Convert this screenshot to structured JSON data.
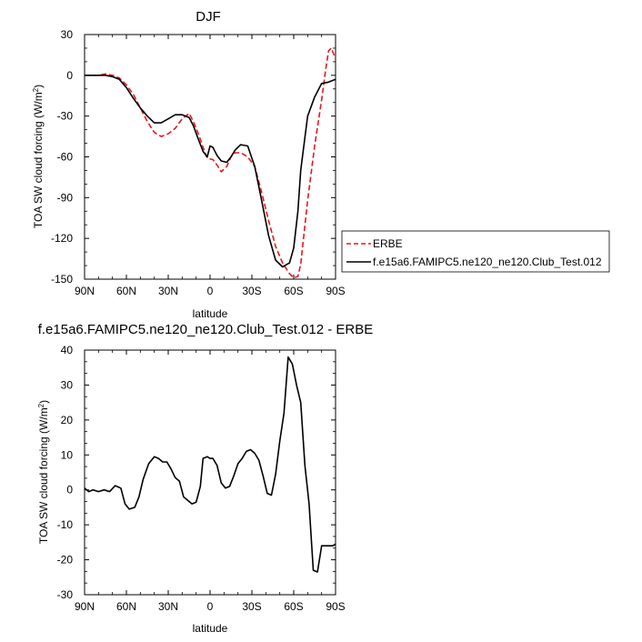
{
  "chart_data": [
    {
      "type": "line",
      "title": "DJF",
      "xlabel": "latitude",
      "ylabel_main": "TOA SW cloud forcing (W/m",
      "ylabel_sup": "2",
      "ylabel_tail": ")",
      "xlim": [
        90,
        -90
      ],
      "ylim": [
        -150,
        30
      ],
      "xticks": [
        90,
        60,
        30,
        0,
        -30,
        -60,
        -90
      ],
      "xtick_labels": [
        "90N",
        "60N",
        "30N",
        "0",
        "30S",
        "60S",
        "90S"
      ],
      "yticks": [
        30,
        0,
        -30,
        -60,
        -90,
        -120,
        -150
      ],
      "ytick_labels": [
        "30",
        "0",
        "-30",
        "-60",
        "-90",
        "-120",
        "-150"
      ],
      "legend_position": "right",
      "series": [
        {
          "name": "ERBE",
          "color": "#e31a1c",
          "dash": true,
          "x": [
            90,
            85,
            80,
            75,
            70,
            65,
            60,
            55,
            50,
            45,
            40,
            35,
            30,
            25,
            20,
            15,
            12,
            8,
            5,
            2,
            -2,
            -5,
            -8,
            -12,
            -15,
            -18,
            -22,
            -27,
            -32,
            -37,
            -42,
            -47,
            -52,
            -57,
            -60,
            -63,
            -65,
            -70,
            -75,
            -80,
            -83,
            -85,
            -87,
            -90
          ],
          "y": [
            0,
            0,
            0,
            1,
            0,
            -2,
            -7,
            -14,
            -24,
            -34,
            -42,
            -45,
            -43,
            -39,
            -32,
            -28,
            -34,
            -44,
            -53,
            -61,
            -62,
            -66,
            -71,
            -67,
            -60,
            -57,
            -57,
            -60,
            -67,
            -86,
            -107,
            -126,
            -138,
            -146,
            -149,
            -148,
            -139,
            -92,
            -52,
            -18,
            5,
            18,
            20,
            12
          ]
        },
        {
          "name": "f.e15a6.FAMIPC5.ne120_ne120.Club_Test.012",
          "color": "#000000",
          "dash": false,
          "x": [
            90,
            85,
            80,
            75,
            70,
            65,
            60,
            55,
            50,
            45,
            40,
            35,
            30,
            25,
            20,
            15,
            12,
            8,
            5,
            2,
            0,
            -2,
            -5,
            -8,
            -12,
            -15,
            -18,
            -22,
            -27,
            -32,
            -37,
            -42,
            -47,
            -52,
            -57,
            -60,
            -63,
            -65,
            -70,
            -75,
            -80,
            -85,
            -90
          ],
          "y": [
            0,
            0,
            0,
            0,
            -1,
            -3,
            -9,
            -17,
            -24,
            -30,
            -35,
            -35,
            -32,
            -29,
            -29,
            -31,
            -37,
            -48,
            -56,
            -60,
            -52,
            -53,
            -59,
            -63,
            -64,
            -60,
            -55,
            -51,
            -52,
            -67,
            -92,
            -118,
            -136,
            -141,
            -138,
            -127,
            -100,
            -70,
            -30,
            -16,
            -6,
            -5,
            -3
          ]
        }
      ]
    },
    {
      "type": "line",
      "title": "f.e15a6.FAMIPC5.ne120_ne120.Club_Test.012 - ERBE",
      "xlabel": "latitude",
      "ylabel_main": "TOA SW cloud forcing (W/m",
      "ylabel_sup": "2",
      "ylabel_tail": ")",
      "xlim": [
        90,
        -90
      ],
      "ylim": [
        -30,
        40
      ],
      "xticks": [
        90,
        60,
        30,
        0,
        -30,
        -60,
        -90
      ],
      "xtick_labels": [
        "90N",
        "60N",
        "30N",
        "0",
        "30S",
        "60S",
        "90S"
      ],
      "yticks": [
        40,
        30,
        20,
        10,
        0,
        -10,
        -20,
        -30
      ],
      "ytick_labels": [
        "40",
        "30",
        "20",
        "10",
        "0",
        "-10",
        "-20",
        "-30"
      ],
      "series": [
        {
          "color": "#000000",
          "dash": false,
          "x": [
            90,
            87,
            84,
            80,
            76,
            72,
            68,
            64,
            61,
            58,
            54,
            51,
            48,
            44,
            40,
            37,
            34,
            31,
            28,
            25,
            22,
            19,
            16,
            13,
            10,
            7,
            5,
            2,
            0,
            -2,
            -5,
            -8,
            -11,
            -14,
            -17,
            -20,
            -23,
            -26,
            -29,
            -32,
            -35,
            -38,
            -41,
            -44,
            -47,
            -50,
            -53,
            -56,
            -59,
            -62,
            -65,
            -68,
            -71,
            -74,
            -77,
            -80,
            -83,
            -86,
            -88,
            -90
          ],
          "y": [
            0.5,
            -0.5,
            0,
            -0.5,
            0,
            -0.5,
            1.2,
            0.5,
            -4,
            -5.5,
            -5,
            -2,
            3,
            7.5,
            9.5,
            9,
            8,
            8,
            6,
            3.5,
            2.5,
            -2,
            -3,
            -4,
            -3.5,
            1,
            9,
            9.5,
            9,
            9,
            7,
            2,
            0.5,
            1,
            4,
            7.5,
            9,
            11,
            11.5,
            10.5,
            8.5,
            4,
            -1,
            -1.5,
            4.5,
            14,
            22,
            38,
            36,
            30,
            25,
            7,
            -4,
            -23,
            -23.5,
            -16,
            -16,
            -16,
            -16,
            -15.5
          ]
        }
      ]
    }
  ]
}
